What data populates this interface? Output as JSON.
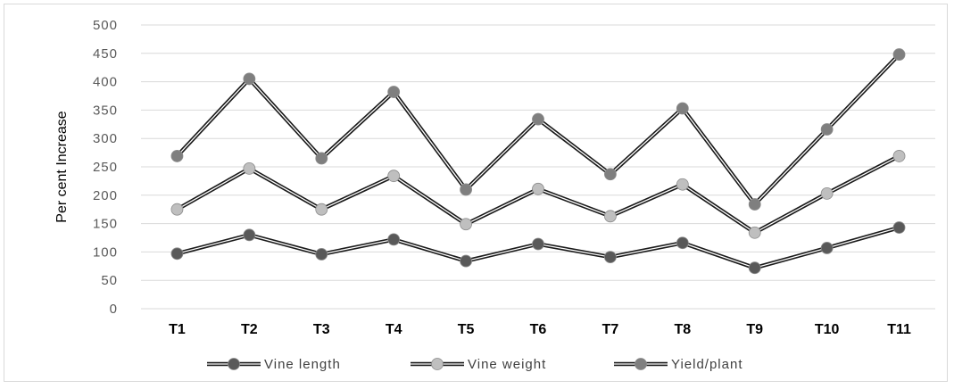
{
  "chart_data": {
    "type": "line",
    "title": "",
    "xlabel": "",
    "ylabel": "Per cent Increase",
    "ylim": [
      0,
      500
    ],
    "yticks": [
      "0",
      "50",
      "100",
      "150",
      "200",
      "250",
      "300",
      "350",
      "400",
      "450",
      "500"
    ],
    "categories": [
      "T1",
      "T2",
      "T3",
      "T4",
      "T5",
      "T6",
      "T7",
      "T8",
      "T9",
      "T10",
      "T11"
    ],
    "grid": true,
    "legend_position": "bottom",
    "series": [
      {
        "name": "Vine length",
        "color": "#595959",
        "values": [
          97,
          130,
          96,
          122,
          84,
          114,
          91,
          116,
          72,
          107,
          143
        ]
      },
      {
        "name": "Vine weight",
        "color": "#bfbfbf",
        "values": [
          175,
          247,
          175,
          234,
          149,
          211,
          163,
          219,
          134,
          203,
          269
        ]
      },
      {
        "name": "Yield/plant",
        "color": "#7f7f7f",
        "values": [
          269,
          405,
          265,
          382,
          210,
          334,
          237,
          353,
          184,
          316,
          448
        ]
      }
    ]
  }
}
